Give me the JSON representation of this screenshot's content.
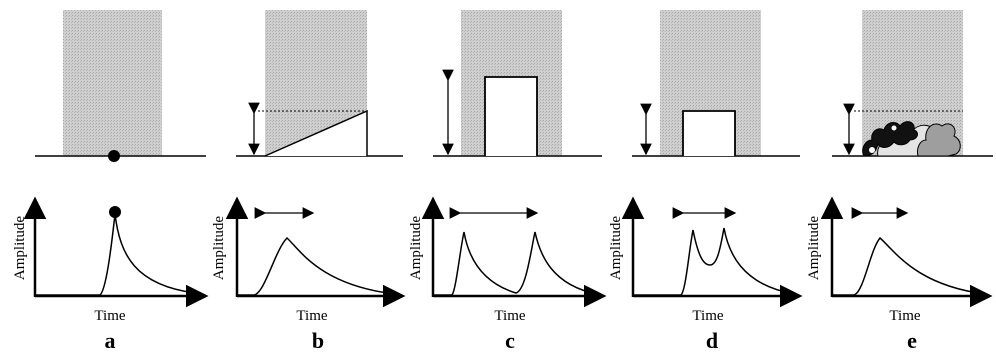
{
  "panels": [
    {
      "letter": "a",
      "xlabel": "Time",
      "ylabel": "Amplitude"
    },
    {
      "letter": "b",
      "xlabel": "Time",
      "ylabel": "Amplitude"
    },
    {
      "letter": "c",
      "xlabel": "Time",
      "ylabel": "Amplitude"
    },
    {
      "letter": "d",
      "xlabel": "Time",
      "ylabel": "Amplitude"
    },
    {
      "letter": "e",
      "xlabel": "Time",
      "ylabel": "Amplitude"
    }
  ],
  "colors": {
    "shade": "#c9c9c9",
    "ink": "#000000",
    "bump_light": "#e2e2e2",
    "bump_mid": "#9a9a9a"
  }
}
